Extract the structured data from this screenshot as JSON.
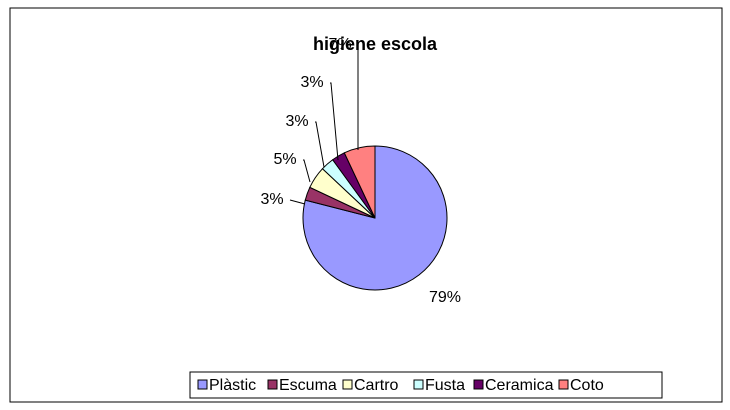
{
  "chart_data": {
    "type": "pie",
    "title": "higiene escola",
    "categories": [
      "Plàstic",
      "Escuma",
      "Cartro",
      "Fusta",
      "Ceramica",
      "Coto"
    ],
    "values": [
      79,
      3,
      5,
      3,
      3,
      7
    ],
    "value_labels": [
      "79%",
      "3%",
      "5%",
      "3%",
      "3%",
      "7%"
    ],
    "colors": [
      "#9999ff",
      "#993366",
      "#ffffcc",
      "#ccffff",
      "#660066",
      "#ff8080"
    ],
    "legend": "bottom"
  }
}
